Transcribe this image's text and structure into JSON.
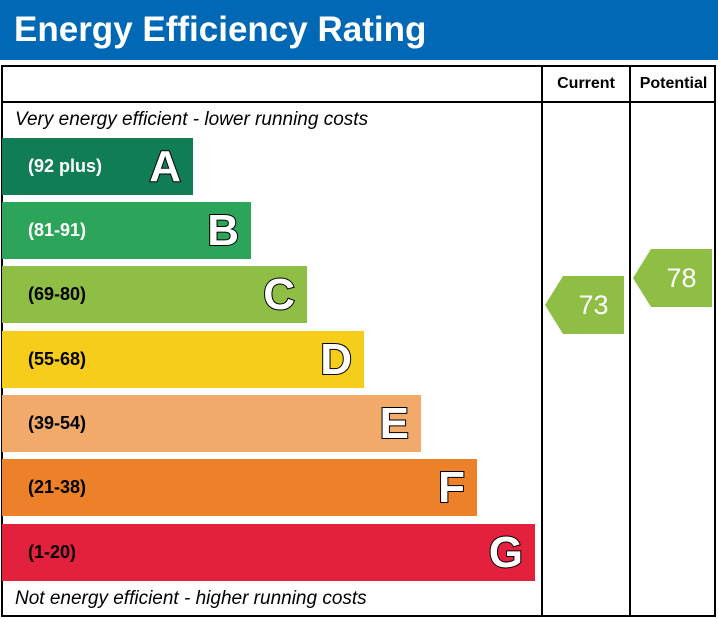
{
  "header": {
    "title": "Energy Efficiency Rating"
  },
  "columns": {
    "current": "Current",
    "potential": "Potential"
  },
  "notes": {
    "top": "Very energy efficient - lower running costs",
    "bottom": "Not energy efficient - higher running costs"
  },
  "chart_data": {
    "type": "bar",
    "title": "Energy Efficiency Rating",
    "bands": [
      {
        "letter": "A",
        "range": "(92 plus)",
        "color": "#117d55"
      },
      {
        "letter": "B",
        "range": "(81-91)",
        "color": "#2ca55b"
      },
      {
        "letter": "C",
        "range": "(69-80)",
        "color": "#8fbe45"
      },
      {
        "letter": "D",
        "range": "(55-68)",
        "color": "#f6cd1a"
      },
      {
        "letter": "E",
        "range": "(39-54)",
        "color": "#f2aa6b"
      },
      {
        "letter": "F",
        "range": "(21-38)",
        "color": "#ec8129"
      },
      {
        "letter": "G",
        "range": "(1-20)",
        "color": "#e3213c"
      }
    ],
    "current": {
      "value": "73",
      "band": "C",
      "color": "#8fbe45"
    },
    "potential": {
      "value": "78",
      "band": "C",
      "color": "#8fbe45"
    }
  }
}
